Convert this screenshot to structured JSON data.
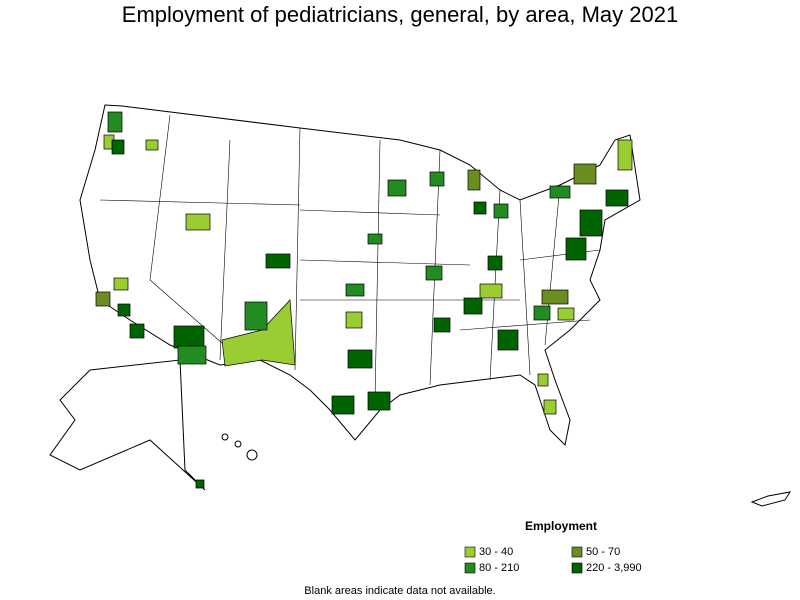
{
  "title": "Employment of pediatricians, general, by area, May 2021",
  "legend": {
    "title": "Employment",
    "items": [
      {
        "label": "30 - 40",
        "color": "#9acd32"
      },
      {
        "label": "50 - 70",
        "color": "#6b8e23"
      },
      {
        "label": "80 - 210",
        "color": "#228b22"
      },
      {
        "label": "220 - 3,990",
        "color": "#006400"
      }
    ]
  },
  "footnote": "Blank areas indicate data not available."
}
